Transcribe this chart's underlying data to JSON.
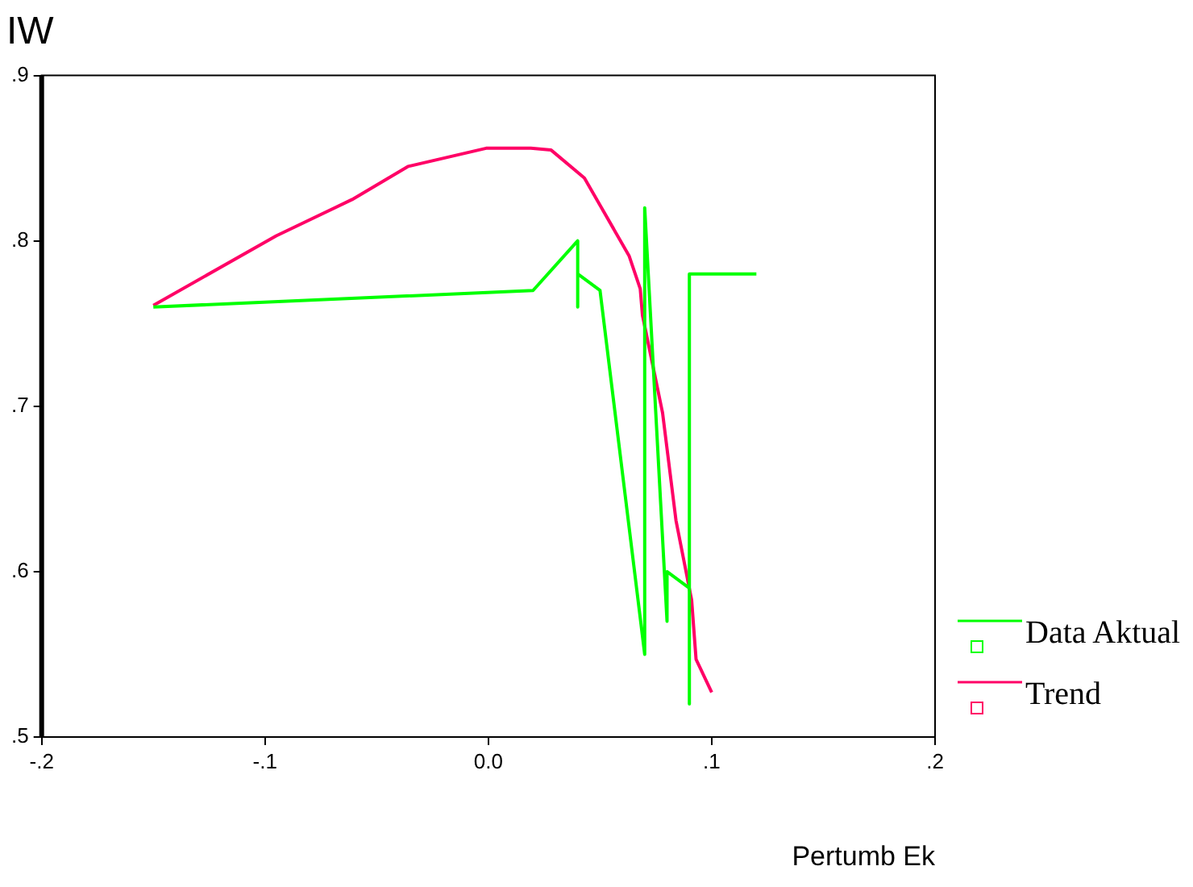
{
  "chart_data": {
    "type": "line",
    "title": "IW",
    "xlabel": "Pertumb Ek",
    "xlim": [
      -0.2,
      0.2
    ],
    "xticks": [
      {
        "value": -0.2,
        "label": "-.2"
      },
      {
        "value": -0.1,
        "label": "-.1"
      },
      {
        "value": 0,
        "label": "0.0"
      },
      {
        "value": 0.1,
        "label": ".1"
      },
      {
        "value": 0.2,
        "label": ".2"
      }
    ],
    "ylim": [
      0.5,
      0.9
    ],
    "yticks": [
      {
        "value": 0.5,
        "label": ".5"
      },
      {
        "value": 0.6,
        "label": ".6"
      },
      {
        "value": 0.7,
        "label": ".7"
      },
      {
        "value": 0.8,
        "label": ".8"
      },
      {
        "value": 0.9,
        "label": ".9"
      }
    ],
    "series": [
      {
        "name": "Data Aktual",
        "color": "#00ff00",
        "x": [
          -0.15,
          0.02,
          0.04,
          0.04,
          0.04,
          0.05,
          0.07,
          0.07,
          0.08,
          0.08,
          0.09,
          0.09,
          0.09,
          0.12
        ],
        "values": [
          0.76,
          0.77,
          0.8,
          0.76,
          0.78,
          0.77,
          0.55,
          0.82,
          0.57,
          0.6,
          0.59,
          0.52,
          0.78,
          0.78
        ]
      },
      {
        "name": "Trend",
        "color": "#ff0066",
        "x": [
          -0.15,
          -0.095,
          -0.061,
          -0.036,
          -0.001,
          0.019,
          0.028,
          0.043,
          0.063,
          0.068,
          0.069,
          0.078,
          0.084,
          0.091,
          0.093,
          0.1
        ],
        "values": [
          0.761,
          0.803,
          0.825,
          0.845,
          0.856,
          0.856,
          0.855,
          0.838,
          0.791,
          0.771,
          0.755,
          0.696,
          0.631,
          0.583,
          0.547,
          0.527
        ]
      }
    ],
    "grid": false,
    "legend": "bottom right",
    "marker": "none",
    "line_style": "solid"
  }
}
